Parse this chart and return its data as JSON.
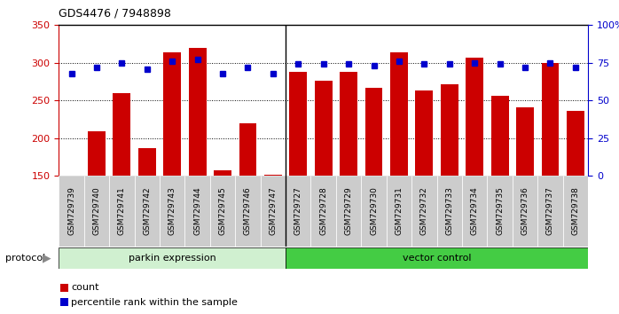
{
  "title": "GDS4476 / 7948898",
  "samples": [
    "GSM729739",
    "GSM729740",
    "GSM729741",
    "GSM729742",
    "GSM729743",
    "GSM729744",
    "GSM729745",
    "GSM729746",
    "GSM729747",
    "GSM729727",
    "GSM729728",
    "GSM729729",
    "GSM729730",
    "GSM729731",
    "GSM729732",
    "GSM729733",
    "GSM729734",
    "GSM729735",
    "GSM729736",
    "GSM729737",
    "GSM729738"
  ],
  "counts": [
    150,
    209,
    260,
    187,
    314,
    320,
    157,
    220,
    152,
    288,
    276,
    288,
    267,
    314,
    263,
    272,
    307,
    256,
    241,
    300,
    236
  ],
  "percentiles": [
    68,
    72,
    75,
    71,
    76,
    77,
    68,
    72,
    68,
    74,
    74,
    74,
    73,
    76,
    74,
    74,
    75,
    74,
    72,
    75,
    72
  ],
  "group1_count": 9,
  "group2_count": 12,
  "group1_label": "parkin expression",
  "group2_label": "vector control",
  "group1_color": "#d0f0d0",
  "group2_color": "#44cc44",
  "bar_color": "#cc0000",
  "dot_color": "#0000cc",
  "ylim_left": [
    150,
    350
  ],
  "ylim_right": [
    0,
    100
  ],
  "yticks_left": [
    150,
    200,
    250,
    300,
    350
  ],
  "yticks_right": [
    0,
    25,
    50,
    75,
    100
  ],
  "ytick_labels_right": [
    "0",
    "25",
    "50",
    "75",
    "100%"
  ],
  "bg_color": "#ffffff",
  "tick_bg_color": "#cccccc",
  "protocol_label": "protocol",
  "legend_count_label": "count",
  "legend_pct_label": "percentile rank within the sample"
}
